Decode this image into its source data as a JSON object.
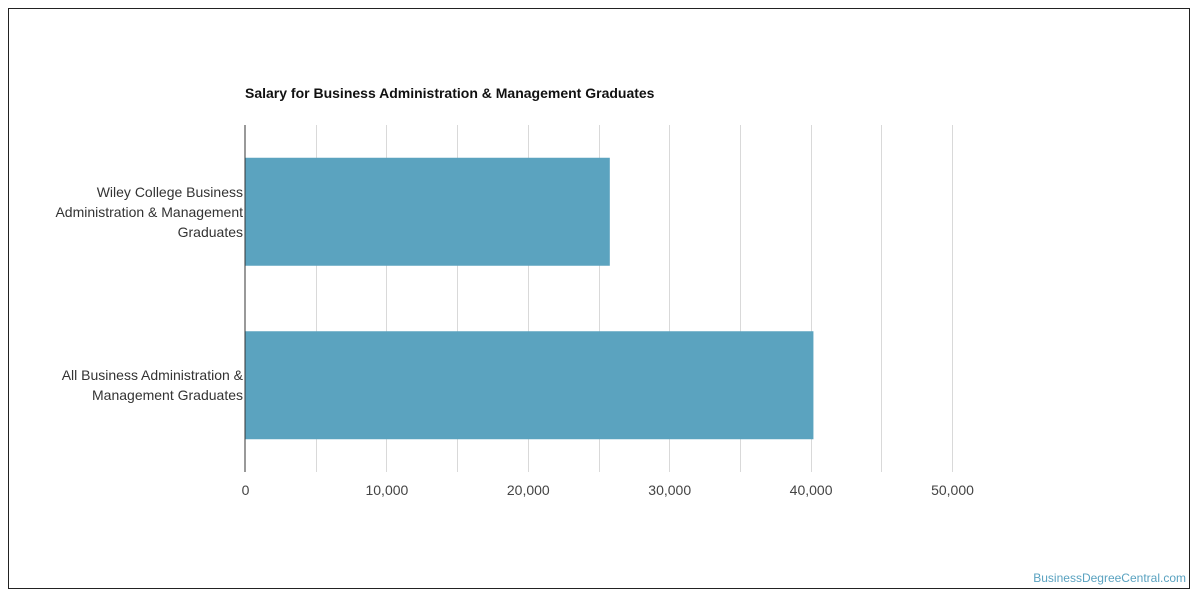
{
  "chart_data": {
    "type": "bar",
    "orientation": "horizontal",
    "title": "Salary for Business Administration & Management Graduates",
    "categories": [
      "Wiley College Business Administration & Management Graduates",
      "All Business Administration & Management Graduates"
    ],
    "category_label_lines": [
      [
        "Wiley College Business",
        "Administration & Management",
        "Graduates"
      ],
      [
        "All Business Administration &",
        "Management Graduates"
      ]
    ],
    "values": [
      25800,
      40200
    ],
    "xlim": [
      0,
      50000
    ],
    "x_ticks": [
      0,
      10000,
      20000,
      30000,
      40000,
      50000
    ],
    "x_tick_labels": [
      "0",
      "10,000",
      "20,000",
      "30,000",
      "40,000",
      "50,000"
    ],
    "grid": true,
    "bar_color": "#5ba3bf",
    "grid_color": "#d9d9d9"
  },
  "watermark": "BusinessDegreeCentral.com"
}
